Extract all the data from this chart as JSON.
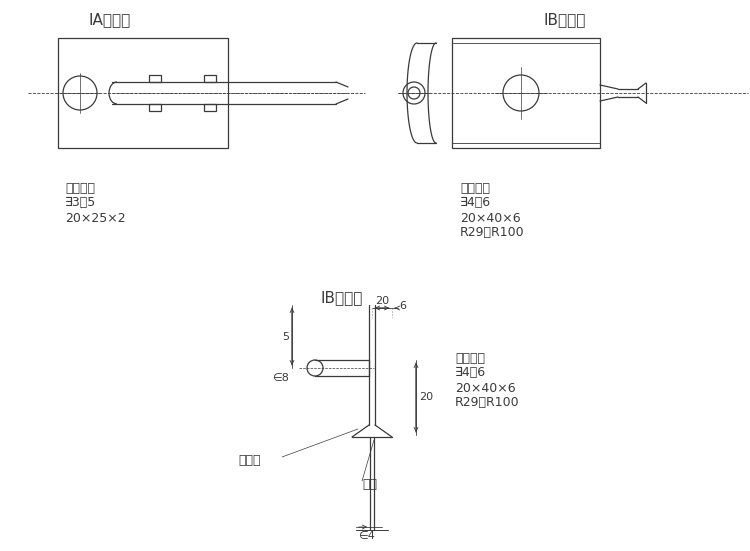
{
  "bg_color": "#ffffff",
  "lc": "#3a3a3a",
  "title_IA": "IA平面式",
  "title_IB_top": "IB曲面式",
  "title_IB_bottom": "IB曲面式",
  "spec_label": "规格尺寸",
  "spec_IA_1": "∃3～5",
  "spec_IA_2": "20×25×2",
  "spec_IB_1": "∃4～6",
  "spec_IB_2": "20×40×6",
  "spec_IB_3": "R29、R100",
  "dim_20": "20",
  "dim_6": "6",
  "dim_5": "5",
  "dim_phi8": "∈8",
  "dim_20v": "20",
  "dim_phi4": "∈4",
  "label_guide_plate": "导热板",
  "label_weld": "焊接",
  "fs_title": 11,
  "fs_label": 9,
  "fs_dim": 8
}
